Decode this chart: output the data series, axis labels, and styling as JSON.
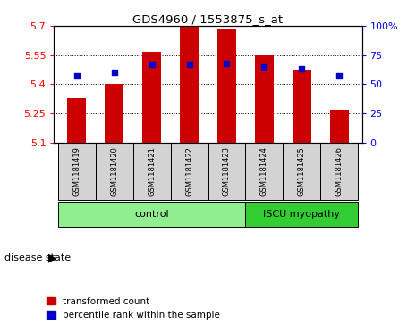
{
  "title": "GDS4960 / 1553875_s_at",
  "samples": [
    "GSM1181419",
    "GSM1181420",
    "GSM1181421",
    "GSM1181422",
    "GSM1181423",
    "GSM1181424",
    "GSM1181425",
    "GSM1181426"
  ],
  "transformed_counts": [
    5.33,
    5.4,
    5.565,
    5.7,
    5.685,
    5.55,
    5.475,
    5.27
  ],
  "percentile_ranks": [
    57,
    60,
    67,
    67,
    68,
    65,
    63,
    57
  ],
  "ylim_left": [
    5.1,
    5.7
  ],
  "ylim_right": [
    0,
    100
  ],
  "yticks_left": [
    5.1,
    5.25,
    5.4,
    5.55,
    5.7
  ],
  "yticks_right": [
    0,
    25,
    50,
    75,
    100
  ],
  "ytick_labels_left": [
    "5.1",
    "5.25",
    "5.4",
    "5.55",
    "5.7"
  ],
  "ytick_labels_right": [
    "0",
    "25",
    "50",
    "75",
    "100%"
  ],
  "bar_color": "#cc0000",
  "dot_color": "#0000cc",
  "bar_bottom": 5.1,
  "ctrl_count": 5,
  "disease_count": 3,
  "control_label": "control",
  "disease_label": "ISCU myopathy",
  "disease_state_label": "disease state",
  "legend_bar_label": "transformed count",
  "legend_dot_label": "percentile rank within the sample",
  "group_box_color_control": "#90ee90",
  "group_box_color_disease": "#32cd32",
  "sample_box_color": "#d3d3d3",
  "bar_width": 0.5
}
